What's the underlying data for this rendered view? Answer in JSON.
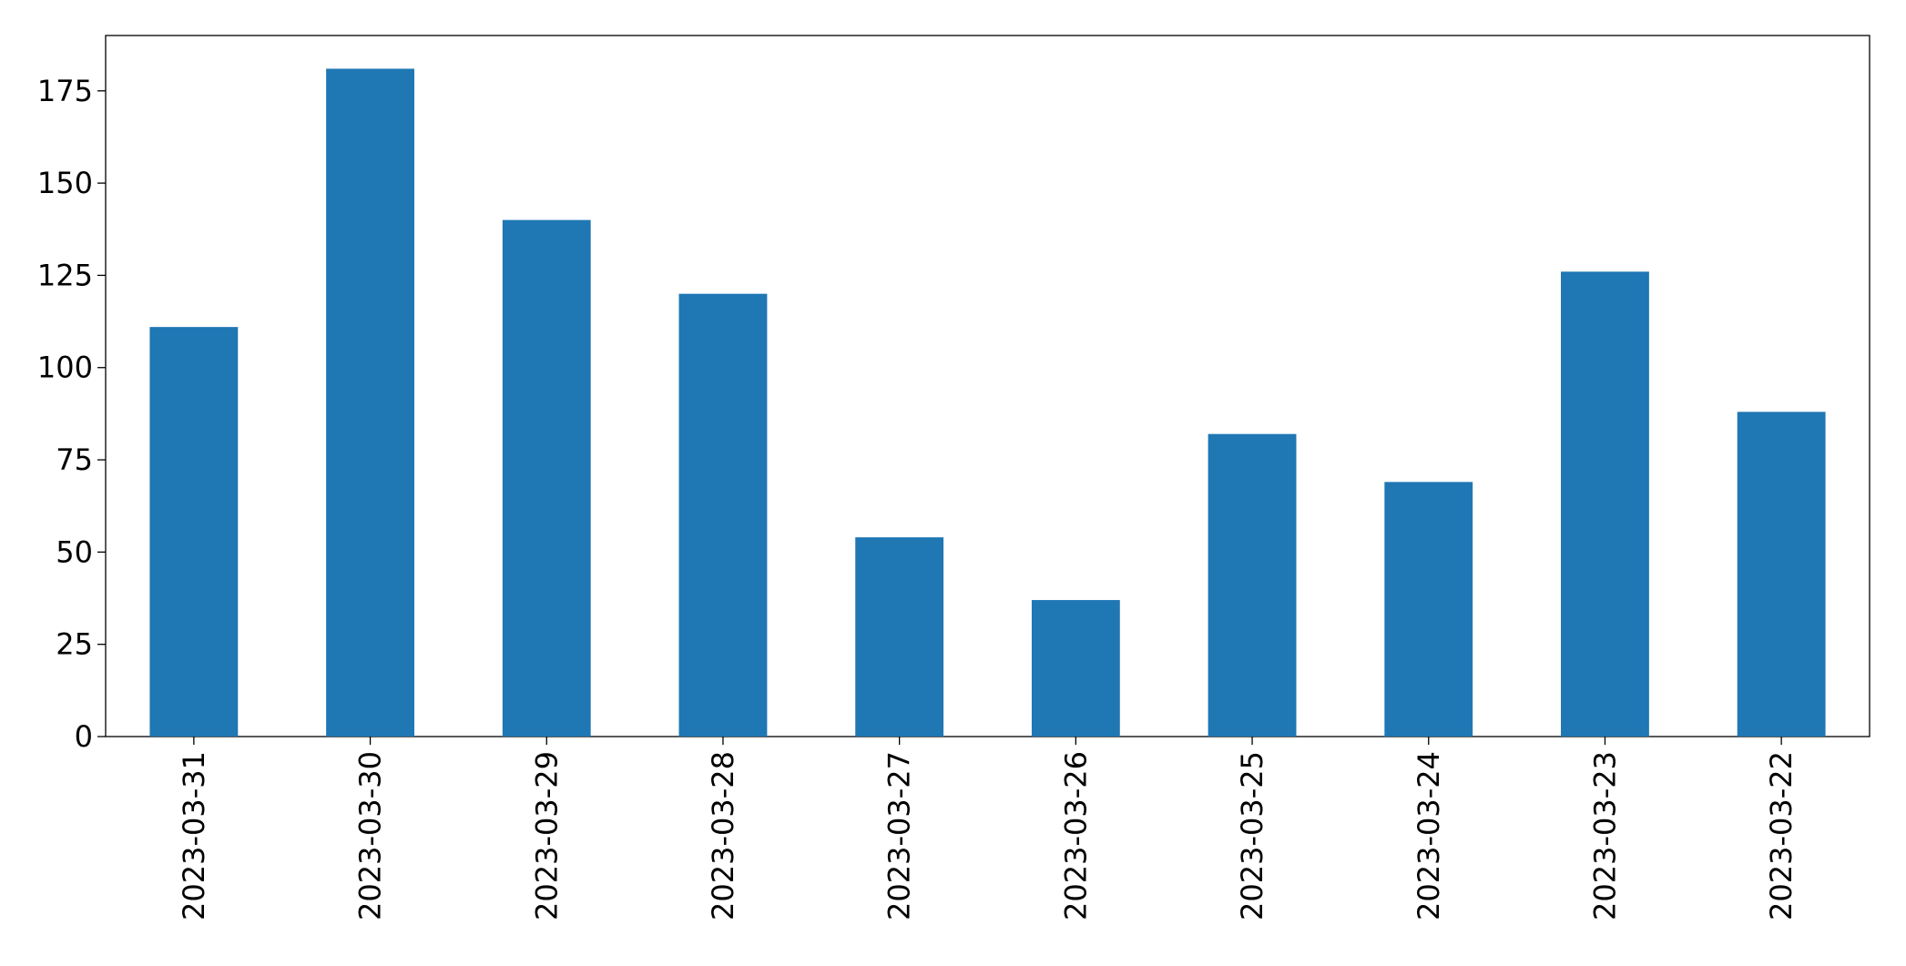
{
  "chart_data": {
    "type": "bar",
    "categories": [
      "2023-03-31",
      "2023-03-30",
      "2023-03-29",
      "2023-03-28",
      "2023-03-27",
      "2023-03-26",
      "2023-03-25",
      "2023-03-24",
      "2023-03-23",
      "2023-03-22"
    ],
    "values": [
      111,
      181,
      140,
      120,
      54,
      37,
      82,
      69,
      126,
      88
    ],
    "color": "#1f77b4",
    "ylim": [
      0,
      190
    ],
    "yticks": [
      0,
      25,
      50,
      75,
      100,
      125,
      150,
      175
    ],
    "grid": false
  }
}
